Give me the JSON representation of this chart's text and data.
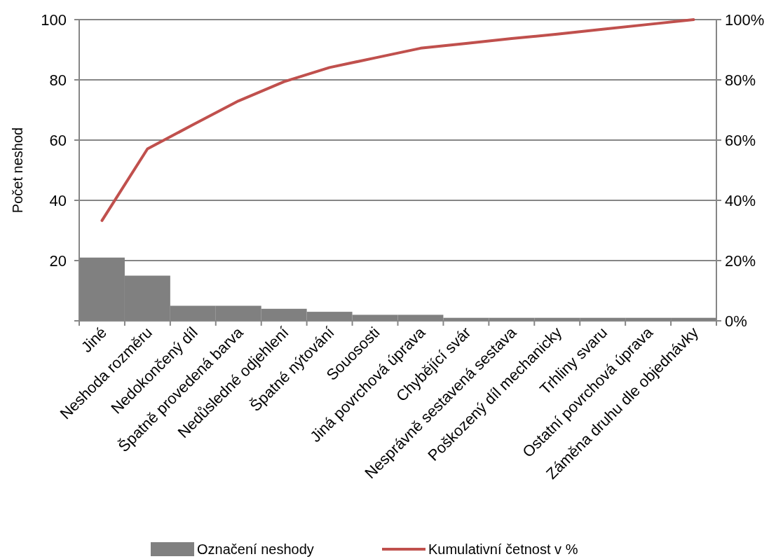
{
  "chart_data": {
    "type": "bar",
    "ylabel": "Počet neshod",
    "categories": [
      "Jiné",
      "Neshoda rozměru",
      "Nedokončený díl",
      "Špatně provedená barva",
      "Nedůsledné odjehlení",
      "Špatné nýtování",
      "Souososti",
      "Jiná povrchová úprava",
      "Chybějící svár",
      "Nesprávně sestavená sestava",
      "Poškozený díl mechanicky",
      "Trhliny svaru",
      "Ostatní povrchová úprava",
      "Záměna druhu dle objednávky"
    ],
    "series": [
      {
        "name": "Označení neshody",
        "color": "#808080",
        "values": [
          21,
          15,
          5,
          5,
          4,
          3,
          2,
          2,
          1,
          1,
          1,
          1,
          1,
          1
        ]
      },
      {
        "name": "Kumulativní četnost v %",
        "type": "line",
        "axis": "y2",
        "color": "#c0504d",
        "values": [
          0.333,
          0.571,
          0.651,
          0.73,
          0.794,
          0.841,
          0.873,
          0.905,
          0.921,
          0.937,
          0.952,
          0.968,
          0.984,
          1.0
        ]
      }
    ],
    "ylim": [
      0,
      100
    ],
    "yticks": [
      {
        "value": 0,
        "label": null
      },
      20,
      40,
      60,
      80,
      100
    ],
    "y2lim": [
      0,
      1
    ],
    "y2ticks": [
      {
        "value": 0,
        "label": "0%"
      },
      {
        "value": 0.2,
        "label": "20%"
      },
      {
        "value": 0.4,
        "label": "40%"
      },
      {
        "value": 0.6,
        "label": "60%"
      },
      {
        "value": 0.8,
        "label": "80%"
      },
      {
        "value": 1,
        "label": "100%"
      }
    ],
    "grid": "y",
    "legend": "bottom",
    "marker": "none",
    "line_style": "solid"
  }
}
